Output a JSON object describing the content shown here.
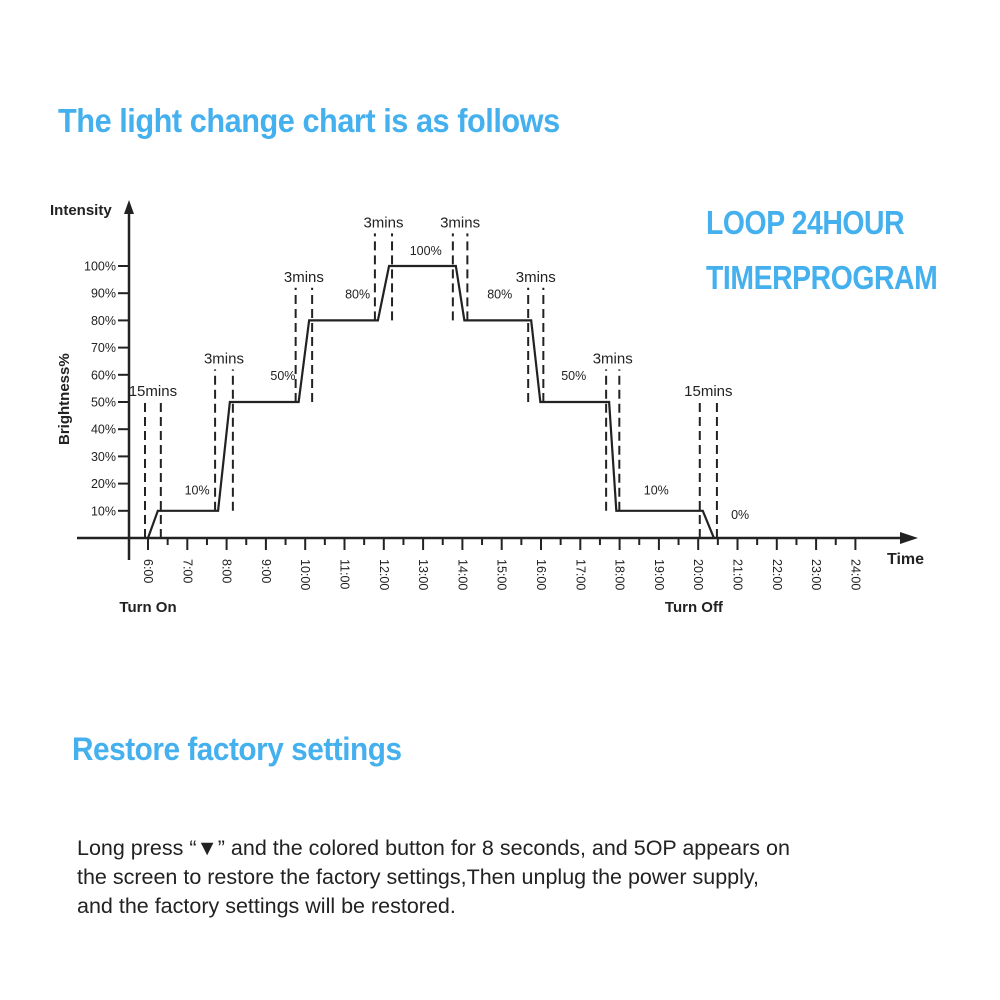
{
  "headings": {
    "chart_title": "The light change chart is as follows",
    "loop_line1": "LOOP 24HOUR",
    "loop_line2": "TIMERPROGRAM",
    "restore_title": "Restore factory settings"
  },
  "instructions": {
    "line1": "Long press “▼” and the colored button for 8 seconds, and 5OP appears on",
    "line2": "the screen to restore the factory settings,Then unplug the power supply,",
    "line3": "and the factory settings will be restored."
  },
  "colors": {
    "heading": "#45b0ee",
    "line": "#222222"
  },
  "chart_data": {
    "type": "line",
    "title": "",
    "xlabel": "Time",
    "ylabel": "Brightness%",
    "yaxis_top_label": "Intensity",
    "xlim": [
      "6:00",
      "24:00"
    ],
    "ylim": [
      0,
      100
    ],
    "grid": false,
    "x_ticks": [
      "6:00",
      "7:00",
      "8:00",
      "9:00",
      "10:00",
      "11:00",
      "12:00",
      "13:00",
      "14:00",
      "15:00",
      "16:00",
      "17:00",
      "18:00",
      "19:00",
      "20:00",
      "21:00",
      "22:00",
      "23:00",
      "24:00"
    ],
    "y_ticks": [
      "10%",
      "20%",
      "30%",
      "40%",
      "50%",
      "60%",
      "70%",
      "80%",
      "90%",
      "100%"
    ],
    "series": [
      {
        "points": [
          [
            "6:00",
            0
          ],
          [
            "6:15",
            10
          ],
          [
            "7:47",
            10
          ],
          [
            "8:05",
            50
          ],
          [
            "9:50",
            50
          ],
          [
            "10:06",
            80
          ],
          [
            "11:51",
            80
          ],
          [
            "12:08",
            100
          ],
          [
            "13:50",
            100
          ],
          [
            "14:03",
            80
          ],
          [
            "15:45",
            80
          ],
          [
            "15:59",
            50
          ],
          [
            "17:44",
            50
          ],
          [
            "17:55",
            10
          ],
          [
            "20:07",
            10
          ],
          [
            "20:24",
            0
          ]
        ]
      }
    ],
    "transitions": [
      {
        "label": "15mins",
        "from": [
          "6:00",
          0
        ],
        "to": [
          "6:15",
          10
        ]
      },
      {
        "label": "3mins",
        "from": [
          "7:47",
          10
        ],
        "to": [
          "8:05",
          50
        ]
      },
      {
        "label": "3mins",
        "from": [
          "9:50",
          50
        ],
        "to": [
          "10:06",
          80
        ]
      },
      {
        "label": "3mins",
        "from": [
          "11:51",
          80
        ],
        "to": [
          "12:08",
          100
        ]
      },
      {
        "label": "3mins",
        "from": [
          "13:50",
          100
        ],
        "to": [
          "14:03",
          80
        ]
      },
      {
        "label": "3mins",
        "from": [
          "15:45",
          80
        ],
        "to": [
          "15:59",
          50
        ]
      },
      {
        "label": "3mins",
        "from": [
          "17:44",
          50
        ],
        "to": [
          "17:55",
          10
        ]
      },
      {
        "label": "15mins",
        "from": [
          "20:07",
          10
        ],
        "to": [
          "20:24",
          0
        ]
      }
    ],
    "level_labels": [
      {
        "text": "10%",
        "x": "7:15",
        "y": 16
      },
      {
        "text": "50%",
        "x": "9:26",
        "y": 58
      },
      {
        "text": "80%",
        "x": "11:20",
        "y": 88
      },
      {
        "text": "100%",
        "x": "13:04",
        "y": 104
      },
      {
        "text": "80%",
        "x": "14:57",
        "y": 88
      },
      {
        "text": "50%",
        "x": "16:50",
        "y": 58
      },
      {
        "text": "10%",
        "x": "18:56",
        "y": 16
      },
      {
        "text": "0%",
        "x": "21:04",
        "y": 7
      }
    ],
    "annotations": {
      "turn_on": {
        "text": "Turn On",
        "x": "6:00"
      },
      "turn_off": {
        "text": "Turn Off",
        "x": "20:24"
      }
    }
  }
}
